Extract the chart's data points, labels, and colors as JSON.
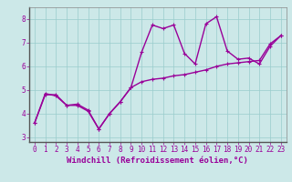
{
  "xlabel": "Windchill (Refroidissement éolien,°C)",
  "background_color": "#cce8e8",
  "grid_color": "#99cccc",
  "line_color": "#990099",
  "x_data": [
    0,
    1,
    2,
    3,
    4,
    5,
    6,
    7,
    8,
    9,
    10,
    11,
    12,
    13,
    14,
    15,
    16,
    17,
    18,
    19,
    20,
    21,
    22,
    23
  ],
  "line1_y": [
    3.6,
    4.8,
    4.8,
    4.35,
    4.35,
    4.1,
    3.35,
    4.0,
    4.5,
    5.1,
    6.6,
    7.75,
    7.6,
    7.75,
    6.55,
    6.1,
    7.8,
    8.1,
    6.65,
    6.3,
    6.35,
    6.1,
    6.85,
    7.3
  ],
  "line2_y": [
    3.6,
    4.85,
    4.75,
    4.35,
    4.4,
    4.15,
    3.35,
    4.0,
    4.5,
    5.1,
    5.35,
    5.45,
    5.5,
    5.6,
    5.65,
    5.75,
    5.85,
    6.0,
    6.1,
    6.15,
    6.2,
    6.25,
    6.95,
    7.3
  ],
  "ylim": [
    2.8,
    8.5
  ],
  "xlim": [
    -0.5,
    23.5
  ],
  "yticks": [
    3,
    4,
    5,
    6,
    7,
    8
  ],
  "xticks": [
    0,
    1,
    2,
    3,
    4,
    5,
    6,
    7,
    8,
    9,
    10,
    11,
    12,
    13,
    14,
    15,
    16,
    17,
    18,
    19,
    20,
    21,
    22,
    23
  ],
  "tick_fontsize": 5.5,
  "xlabel_fontsize": 6.5,
  "line_width": 1.0,
  "marker": "+"
}
